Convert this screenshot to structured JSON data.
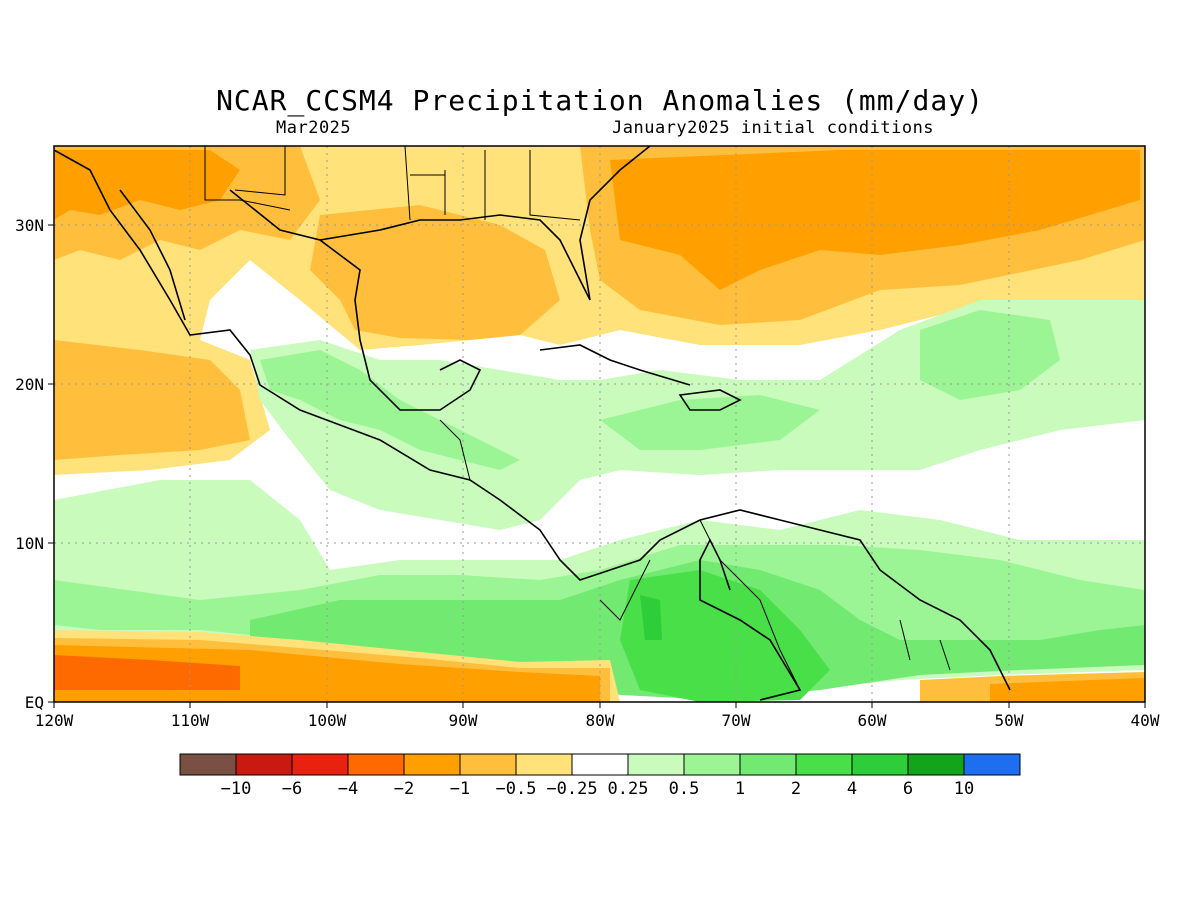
{
  "title": "NCAR_CCSM4 Precipitation Anomalies (mm/day)",
  "subtitle_left": "Mar2025",
  "subtitle_right": "January2025 initial conditions",
  "x_ticks": [
    "120W",
    "110W",
    "100W",
    "90W",
    "80W",
    "70W",
    "60W",
    "50W",
    "40W"
  ],
  "y_ticks": [
    "EQ",
    "10N",
    "20N",
    "30N"
  ],
  "colorbar": {
    "colors": [
      "#7a5045",
      "#c81a10",
      "#e8220f",
      "#ff6a00",
      "#ff9f00",
      "#ffbf3c",
      "#ffe27a",
      "#ffffff",
      "#c8fbbc",
      "#9cf594",
      "#72ea72",
      "#48df48",
      "#2ecd3a",
      "#12a51c",
      "#1e6ff0"
    ],
    "labels": [
      "-10",
      "-6",
      "-4",
      "-2",
      "-1",
      "-0.5",
      "-0.25",
      "0.25",
      "0.5",
      "1",
      "2",
      "4",
      "6",
      "10"
    ]
  },
  "legend_colors": {
    "dry_strong": "#ff6a00",
    "dry": "#ff9f00",
    "dry_mod": "#ffbf3c",
    "dry_weak": "#ffe27a",
    "wet_weak": "#c8fbbc",
    "wet": "#9cf594",
    "wet_mod": "#72ea72",
    "wet_strong": "#48df48",
    "wet_vstrong": "#2ecd3a"
  }
}
